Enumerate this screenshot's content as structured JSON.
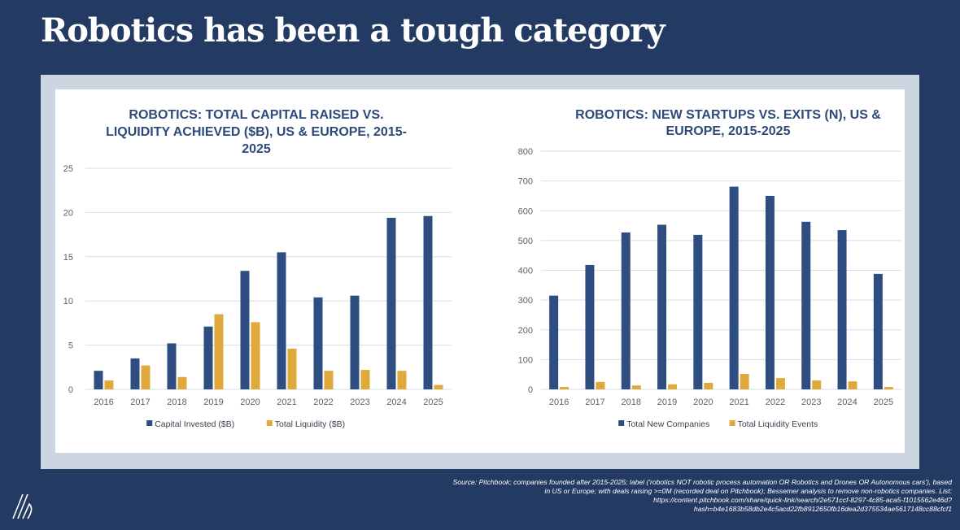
{
  "page_title": "Robotics has been a tough category",
  "source": "Source: Pitchbook; companies founded after 2015-2025; label ('robotics NOT robotic process automation OR Robotics and Drones OR Autonomous cars'), based in US or Europe; with deals raising >=0M (recorded deal on Pitchbook); Bessemer analysis to remove non-robotics companies. List: https://content.pitchbook.com/share/quick-link/search/2e571ccf-8297-4c85-aca5-f1015562e46d?hash=b4e1683b58db2e4c5acd22fb8912650fb16dea2d375534ae5617148cc88cfcf1",
  "colors": {
    "navy": "#2e4d80",
    "gold": "#e0a93b",
    "bg": "#233a62"
  },
  "chart_data": [
    {
      "type": "bar",
      "title_lines": [
        "ROBOTICS: TOTAL CAPITAL RAISED VS.",
        "LIQUIDITY ACHIEVED ($B), US & EUROPE, 2015-",
        "2025"
      ],
      "categories": [
        "2016",
        "2017",
        "2018",
        "2019",
        "2020",
        "2021",
        "2022",
        "2023",
        "2024",
        "2025"
      ],
      "series": [
        {
          "name": "Capital Invested ($B)",
          "values": [
            2.1,
            3.5,
            5.2,
            7.1,
            13.4,
            15.5,
            10.4,
            10.6,
            19.4,
            19.6
          ]
        },
        {
          "name": "Total Liquidity ($B)",
          "values": [
            1.0,
            2.7,
            1.4,
            8.5,
            7.6,
            4.6,
            2.1,
            2.2,
            2.1,
            0.5
          ]
        }
      ],
      "ylim": [
        0,
        25
      ],
      "yticks": [
        "0",
        "5",
        "10",
        "15",
        "20",
        "25"
      ],
      "grid": true,
      "legend": "bottom"
    },
    {
      "type": "bar",
      "title_lines": [
        "ROBOTICS: NEW STARTUPS VS. EXITS (N), US &",
        "EUROPE, 2015-2025"
      ],
      "categories": [
        "2016",
        "2017",
        "2018",
        "2019",
        "2020",
        "2021",
        "2022",
        "2023",
        "2024",
        "2025"
      ],
      "series": [
        {
          "name": "Total New Companies",
          "values": [
            315,
            418,
            527,
            553,
            519,
            681,
            650,
            563,
            535,
            388
          ]
        },
        {
          "name": "Total Liquidity Events",
          "values": [
            8,
            25,
            13,
            17,
            22,
            52,
            38,
            30,
            27,
            8
          ]
        }
      ],
      "ylim": [
        0,
        800
      ],
      "yticks": [
        "0",
        "100",
        "200",
        "300",
        "400",
        "500",
        "600",
        "700",
        "800"
      ],
      "grid": true,
      "legend": "bottom"
    }
  ]
}
